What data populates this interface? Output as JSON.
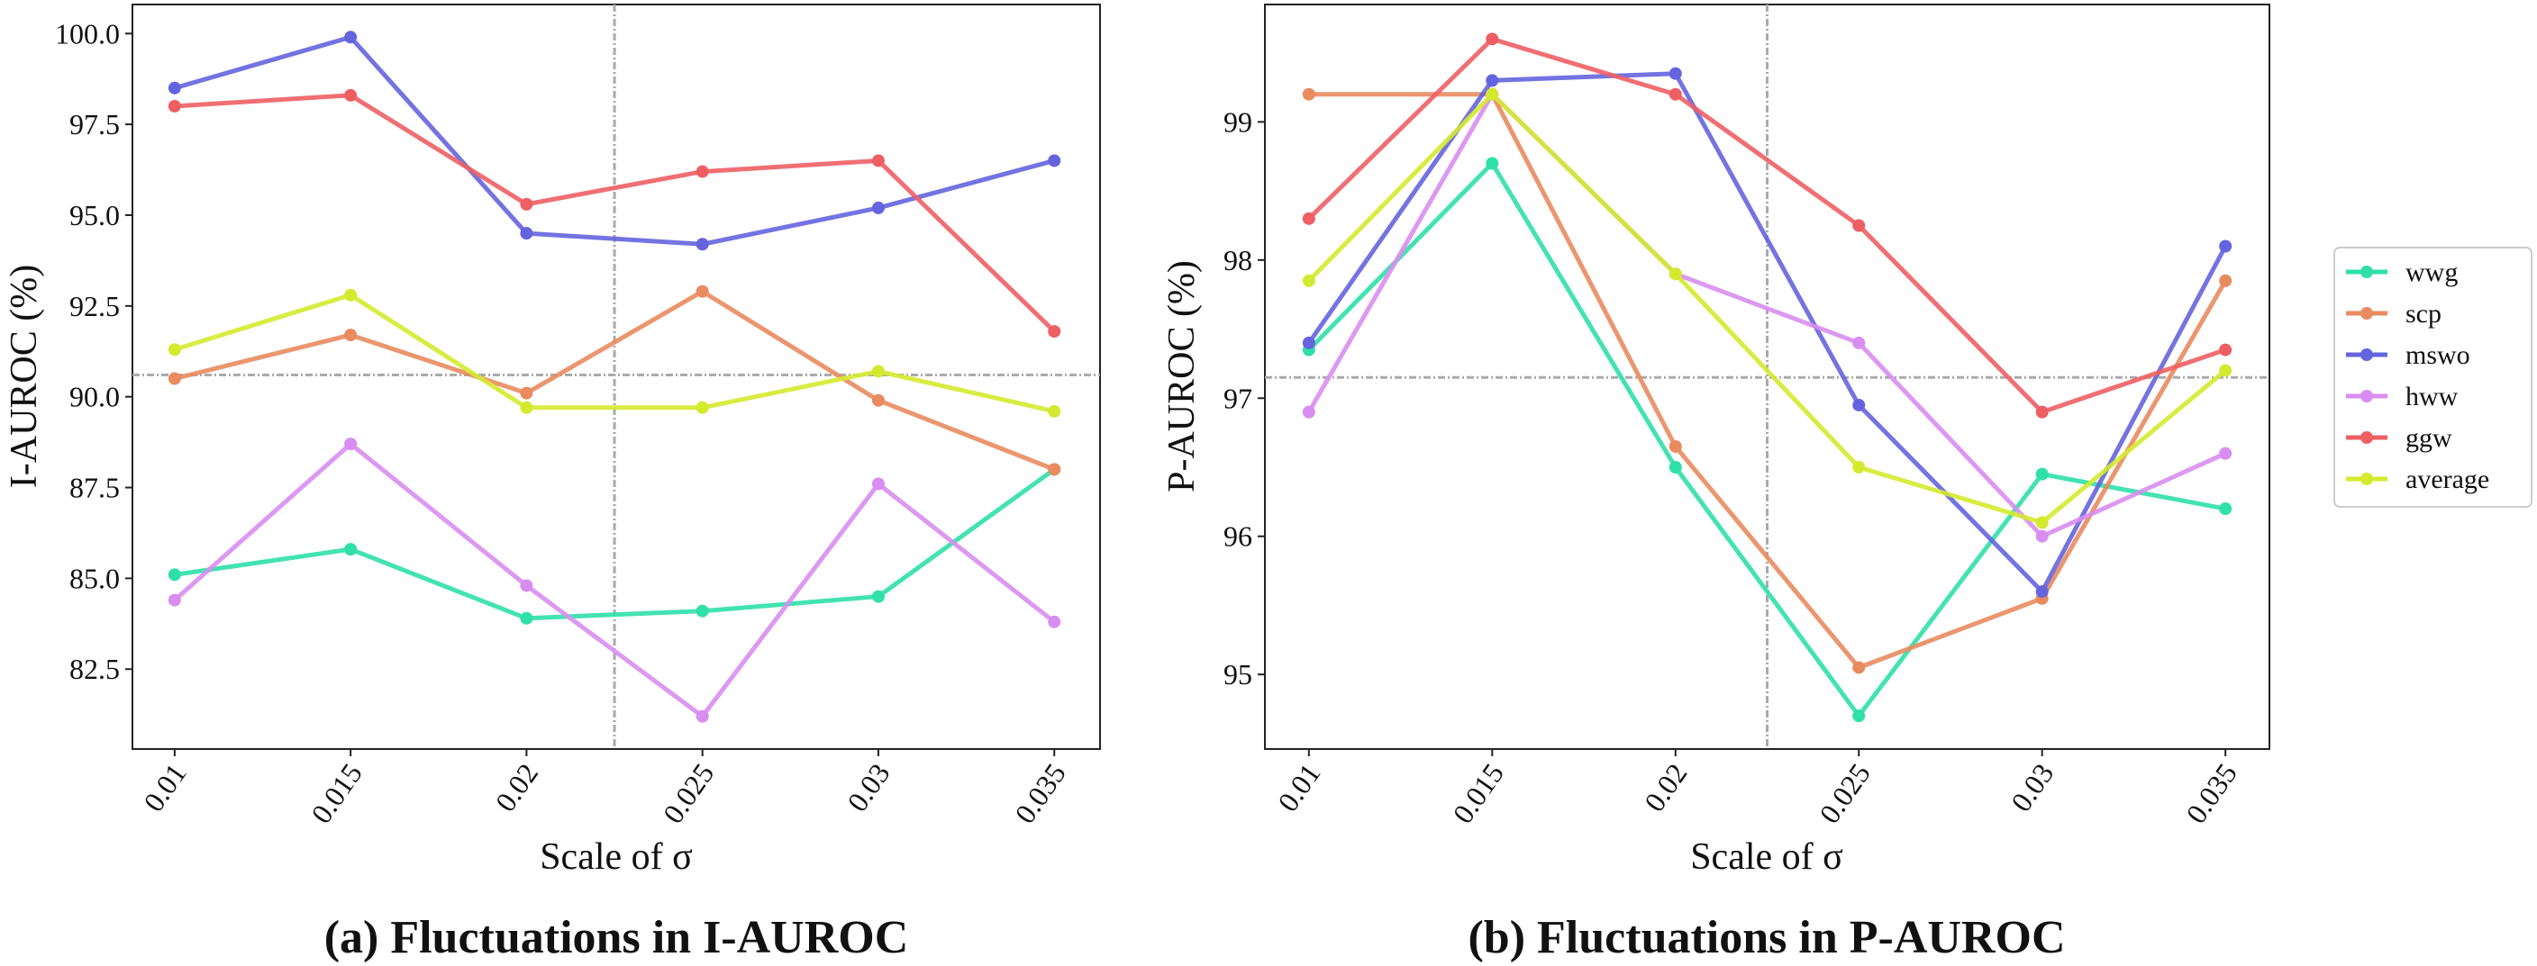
{
  "chart_data": [
    {
      "type": "line",
      "caption": "(a) Fluctuations in I-AUROC",
      "xlabel": "Scale of σ",
      "ylabel": "I-AUROC (%)",
      "x": [
        0.01,
        0.015,
        0.02,
        0.025,
        0.03,
        0.035
      ],
      "x_tick_labels": [
        "0.01",
        "0.015",
        "0.02",
        "0.025",
        "0.03",
        "0.035"
      ],
      "y_ticks": [
        82.5,
        85.0,
        87.5,
        90.0,
        92.5,
        95.0,
        97.5,
        100.0
      ],
      "y_tick_labels": [
        "82.5",
        "85.0",
        "87.5",
        "90.0",
        "92.5",
        "95.0",
        "97.5",
        "100.0"
      ],
      "xlim": [
        0.0088,
        0.0363
      ],
      "ylim": [
        80.3,
        100.8
      ],
      "reference_lines": {
        "horizontal_y": 90.6,
        "vertical_x": 0.0225
      },
      "grid": false,
      "series": [
        {
          "name": "wwg",
          "color": "#2fe0a8",
          "values": [
            85.1,
            85.8,
            83.9,
            84.1,
            84.5,
            88.0
          ]
        },
        {
          "name": "scp",
          "color": "#e98b5f",
          "values": [
            90.5,
            91.7,
            90.1,
            92.9,
            89.9,
            88.0
          ]
        },
        {
          "name": "mswo",
          "color": "#6464df",
          "values": [
            98.5,
            99.9,
            94.5,
            94.2,
            95.2,
            96.5
          ]
        },
        {
          "name": "hww",
          "color": "#d98df0",
          "values": [
            84.4,
            88.7,
            84.8,
            81.2,
            87.6,
            83.8
          ]
        },
        {
          "name": "ggw",
          "color": "#ee5f64",
          "values": [
            98.0,
            98.3,
            95.3,
            96.2,
            96.5,
            91.8
          ]
        },
        {
          "name": "average",
          "color": "#d4ea2e",
          "values": [
            91.3,
            92.8,
            89.7,
            89.7,
            90.7,
            89.6
          ]
        }
      ]
    },
    {
      "type": "line",
      "caption": "(b) Fluctuations in P-AUROC",
      "xlabel": "Scale of σ",
      "ylabel": "P-AUROC (%)",
      "x": [
        0.01,
        0.015,
        0.02,
        0.025,
        0.03,
        0.035
      ],
      "x_tick_labels": [
        "0.01",
        "0.015",
        "0.02",
        "0.025",
        "0.03",
        "0.035"
      ],
      "y_ticks": [
        95,
        96,
        97,
        98,
        99
      ],
      "y_tick_labels": [
        "95",
        "96",
        "97",
        "98",
        "99"
      ],
      "xlim": [
        0.0088,
        0.0362
      ],
      "ylim": [
        94.46,
        99.85
      ],
      "reference_lines": {
        "horizontal_y": 97.15,
        "vertical_x": 0.0225
      },
      "grid": false,
      "legend": "right",
      "series": [
        {
          "name": "wwg",
          "color": "#2fe0a8",
          "values": [
            97.35,
            98.7,
            96.5,
            94.7,
            96.45,
            96.2
          ]
        },
        {
          "name": "scp",
          "color": "#e98b5f",
          "values": [
            99.2,
            99.2,
            96.65,
            95.05,
            95.55,
            97.85
          ]
        },
        {
          "name": "mswo",
          "color": "#6464df",
          "values": [
            97.4,
            99.3,
            99.35,
            96.95,
            95.6,
            98.1
          ]
        },
        {
          "name": "hww",
          "color": "#d98df0",
          "values": [
            96.9,
            99.2,
            97.9,
            97.4,
            96.0,
            96.6
          ]
        },
        {
          "name": "ggw",
          "color": "#ee5f64",
          "values": [
            98.3,
            99.6,
            99.2,
            98.25,
            96.9,
            97.35
          ]
        },
        {
          "name": "average",
          "color": "#d4ea2e",
          "values": [
            97.85,
            99.2,
            97.9,
            96.5,
            96.1,
            97.2
          ]
        }
      ]
    }
  ]
}
